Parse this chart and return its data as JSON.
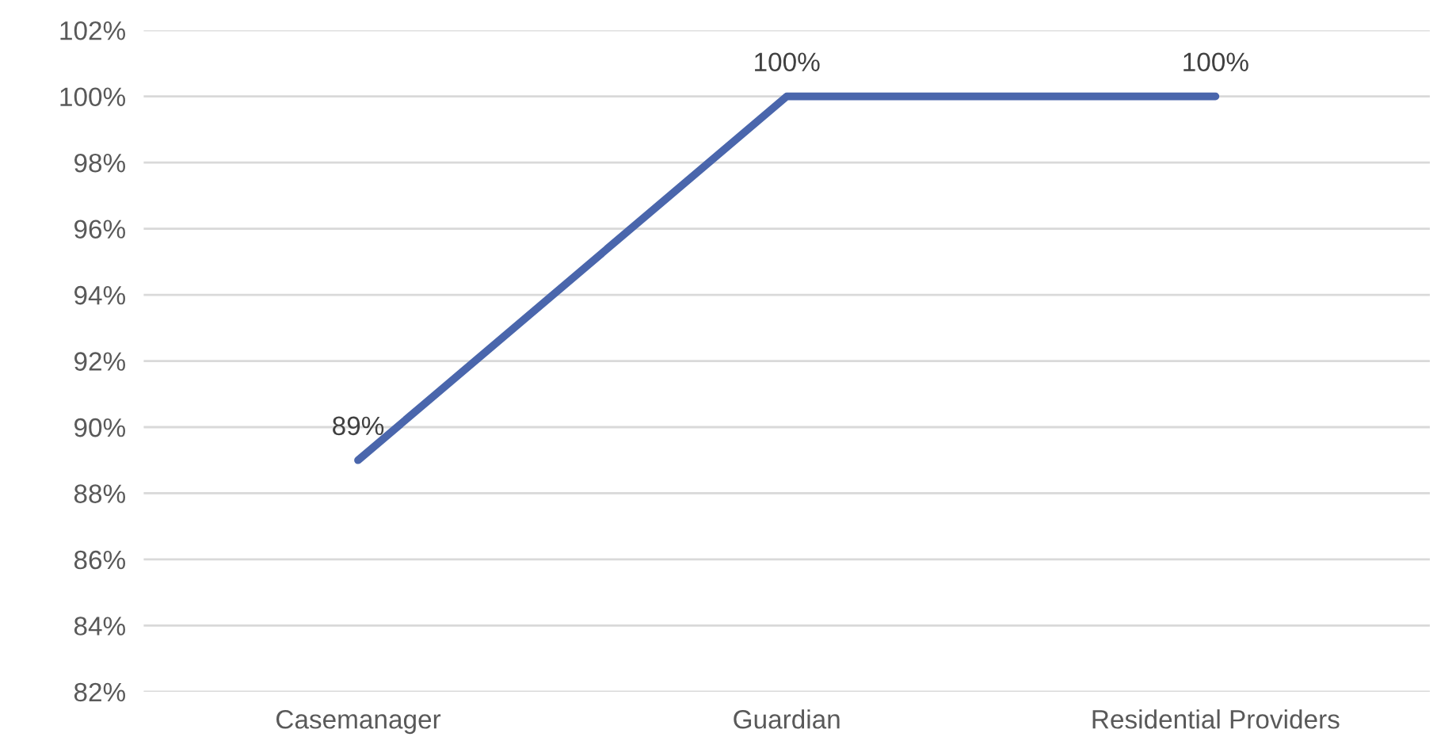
{
  "chart_data": {
    "type": "line",
    "categories": [
      "Casemanager",
      "Guardian",
      "Residential Providers"
    ],
    "series": [
      {
        "color": "#4a66ac",
        "values": [
          89,
          100,
          100
        ],
        "value_labels": [
          "89%",
          "100%",
          "100%"
        ]
      }
    ],
    "ylim": [
      82,
      102
    ],
    "yticks": [
      {
        "value": 82,
        "label": "82%"
      },
      {
        "value": 84,
        "label": "84%"
      },
      {
        "value": 86,
        "label": "86%"
      },
      {
        "value": 88,
        "label": "88%"
      },
      {
        "value": 90,
        "label": "90%"
      },
      {
        "value": 92,
        "label": "92%"
      },
      {
        "value": 94,
        "label": "94%"
      },
      {
        "value": 96,
        "label": "96%"
      },
      {
        "value": 98,
        "label": "98%"
      },
      {
        "value": 100,
        "label": "100%"
      },
      {
        "value": 102,
        "label": "102%"
      }
    ],
    "grid": "y",
    "legend": false,
    "marker": "none",
    "line_style": "solid"
  }
}
